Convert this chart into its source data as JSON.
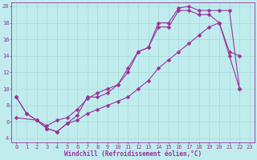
{
  "xlabel": "Windchill (Refroidissement éolien,°C)",
  "bg_color": "#c0ecee",
  "line_color": "#993399",
  "grid_color": "#aadddd",
  "xlim": [
    -0.5,
    23.5
  ],
  "ylim": [
    3.5,
    20.5
  ],
  "xticks": [
    0,
    1,
    2,
    3,
    4,
    5,
    6,
    7,
    8,
    9,
    10,
    11,
    12,
    13,
    14,
    15,
    16,
    17,
    18,
    19,
    20,
    21,
    22,
    23
  ],
  "yticks": [
    4,
    6,
    8,
    10,
    12,
    14,
    16,
    18,
    20
  ],
  "line1_x": [
    0,
    1,
    2,
    3,
    4,
    5,
    6,
    7,
    8,
    9,
    10,
    11,
    12,
    13,
    14,
    15,
    16,
    17,
    18,
    19,
    20,
    21,
    22
  ],
  "line1_y": [
    9,
    7,
    6.2,
    5.5,
    6.2,
    6.5,
    7.5,
    8.8,
    9.5,
    10,
    10.5,
    12.5,
    14.5,
    15,
    17.5,
    17.5,
    19.5,
    19.5,
    19,
    19,
    18,
    14.5,
    14
  ],
  "line2_x": [
    0,
    1,
    2,
    3,
    4,
    5,
    6,
    7,
    8,
    9,
    10,
    11,
    12,
    13,
    14,
    15,
    16,
    17,
    18,
    19,
    20,
    21,
    22
  ],
  "line2_y": [
    9,
    7,
    6.2,
    5.2,
    4.8,
    5.8,
    6.8,
    9,
    9,
    9.5,
    10.5,
    12,
    14.5,
    15,
    18,
    18,
    19.8,
    20,
    19.5,
    19.5,
    19.5,
    19.5,
    10
  ],
  "line3_x": [
    0,
    2,
    3,
    4,
    5,
    6,
    7,
    8,
    9,
    10,
    11,
    12,
    13,
    14,
    15,
    16,
    17,
    18,
    19,
    20,
    21,
    22
  ],
  "line3_y": [
    6.5,
    6.2,
    5.2,
    4.8,
    5.8,
    6.2,
    7,
    7.5,
    8,
    8.5,
    9,
    10,
    11,
    12.5,
    13.5,
    14.5,
    15.5,
    16.5,
    17.5,
    18,
    14,
    10
  ],
  "marker": "D",
  "marker_size": 2.5,
  "line_width": 0.8,
  "tick_fontsize": 5,
  "xlabel_fontsize": 5.5
}
